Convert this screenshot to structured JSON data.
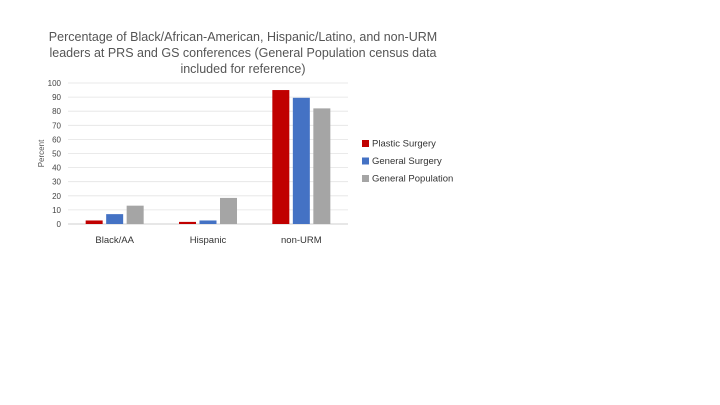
{
  "chart_data": {
    "type": "bar",
    "title": "Percentage of Black/African-American, Hispanic/Latino, and non-URM leaders at PRS and GS conferences (General Population census data included for reference)",
    "title_lines": [
      "Percentage of Black/African-American, Hispanic/Latino, and non-URM",
      "leaders at PRS and GS conferences (General Population census data",
      "included for reference)"
    ],
    "categories": [
      "Black/AA",
      "Hispanic",
      "non-URM"
    ],
    "series": [
      {
        "name": "Plastic Surgery",
        "color": "#c00000",
        "values": [
          2.5,
          1.5,
          95
        ]
      },
      {
        "name": "General Surgery",
        "color": "#4472c4",
        "values": [
          7,
          2.5,
          89.5
        ]
      },
      {
        "name": "General Population",
        "color": "#a5a5a5",
        "values": [
          13,
          18.5,
          82
        ]
      }
    ],
    "xlabel": "",
    "ylabel": "Percent",
    "ylim": [
      0,
      100
    ],
    "yticks": [
      0,
      10,
      20,
      30,
      40,
      50,
      60,
      70,
      80,
      90,
      100
    ],
    "grid": true,
    "legend": "right"
  }
}
